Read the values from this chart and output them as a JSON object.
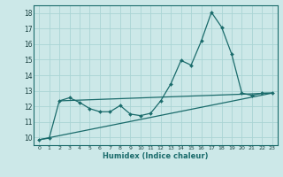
{
  "title": "",
  "xlabel": "Humidex (Indice chaleur)",
  "bg_color": "#cce8e8",
  "line_color": "#1a6b6b",
  "grid_color": "#aad4d4",
  "x_min": -0.5,
  "x_max": 23.5,
  "y_min": 9.5,
  "y_max": 18.5,
  "yticks": [
    10,
    11,
    12,
    13,
    14,
    15,
    16,
    17,
    18
  ],
  "xticks": [
    0,
    1,
    2,
    3,
    4,
    5,
    6,
    7,
    8,
    9,
    10,
    11,
    12,
    13,
    14,
    15,
    16,
    17,
    18,
    19,
    20,
    21,
    22,
    23
  ],
  "line1_x": [
    0,
    1,
    2,
    3,
    4,
    5,
    6,
    7,
    8,
    9,
    10,
    11,
    12,
    13,
    14,
    15,
    16,
    17,
    18,
    19,
    20,
    21,
    22,
    23
  ],
  "line1_y": [
    9.85,
    9.95,
    12.35,
    12.55,
    12.25,
    11.85,
    11.65,
    11.65,
    12.05,
    11.5,
    11.4,
    11.55,
    12.35,
    13.45,
    14.95,
    14.65,
    16.2,
    18.05,
    17.1,
    15.35,
    12.85,
    12.7,
    12.85,
    12.85
  ],
  "line2_x": [
    0,
    23
  ],
  "line2_y": [
    9.85,
    12.85
  ],
  "line3_x": [
    2,
    23
  ],
  "line3_y": [
    12.35,
    12.85
  ]
}
